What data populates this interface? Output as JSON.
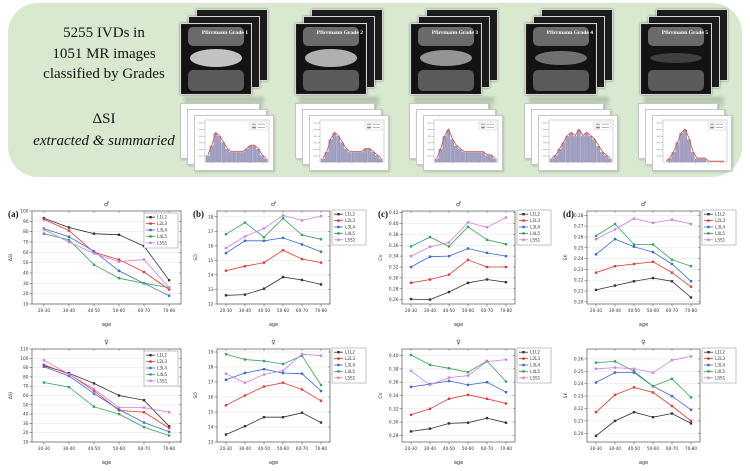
{
  "banner": {
    "count_line1": "5255 IVDs in",
    "count_line2": "1051 MR images",
    "count_line3": "classified by Grades",
    "delta_line1": "ΔSI",
    "delta_line2": "extracted & summaried",
    "bg_color": "#d8e9d0",
    "grades": [
      {
        "label": "Pfirrmann Grade 1",
        "histogram": [
          2,
          5,
          9,
          8,
          6,
          4,
          3,
          3,
          3,
          3,
          4,
          5,
          5,
          4,
          2,
          1
        ]
      },
      {
        "label": "Pfirrmann Grade 2",
        "histogram": [
          1,
          3,
          7,
          9,
          8,
          6,
          4,
          3,
          3,
          3,
          3,
          4,
          4,
          3,
          2,
          1
        ]
      },
      {
        "label": "Pfirrmann Grade 3",
        "histogram": [
          1,
          4,
          8,
          10,
          7,
          5,
          4,
          3,
          3,
          3,
          3,
          3,
          3,
          2,
          2,
          1
        ]
      },
      {
        "label": "Pfirrmann Grade 4",
        "histogram": [
          1,
          2,
          4,
          6,
          8,
          9,
          8,
          10,
          8,
          9,
          8,
          7,
          5,
          3,
          2,
          1
        ]
      },
      {
        "label": "Pfirrmann Grade 5",
        "histogram": [
          0,
          1,
          3,
          6,
          9,
          10,
          7,
          3,
          1,
          1,
          1,
          0,
          0,
          0,
          0,
          0
        ]
      }
    ]
  },
  "palette": {
    "L1L2": "#333333",
    "L2L3": "#e8392f",
    "L3L4": "#3a68d8",
    "L4L5": "#33a457",
    "L5S1": "#cf7fe8"
  },
  "chart_data": [
    {
      "type": "line",
      "panel": "(a)",
      "title": "♂",
      "xlabel": "age",
      "ylabel": "ΔSI",
      "categories": [
        "20-30",
        "30-40",
        "40-50",
        "50-60",
        "60-70",
        "70-80"
      ],
      "ylim": [
        10,
        100
      ],
      "yticks": [
        10,
        20,
        30,
        40,
        50,
        60,
        70,
        80,
        90,
        100
      ],
      "ydecimals": 0,
      "legend_outside": false,
      "series": [
        {
          "name": "L1L2",
          "values": [
            93,
            84,
            78,
            77,
            66,
            33
          ]
        },
        {
          "name": "L2L3",
          "values": [
            92,
            81,
            60,
            53,
            41,
            24
          ]
        },
        {
          "name": "L3L4",
          "values": [
            83,
            75,
            61,
            42,
            30,
            18
          ]
        },
        {
          "name": "L4L5",
          "values": [
            78,
            72,
            48,
            35,
            30,
            26
          ]
        },
        {
          "name": "L5S1",
          "values": [
            82,
            70,
            59,
            51,
            53,
            26
          ]
        }
      ]
    },
    {
      "type": "line",
      "panel": "(b)",
      "title": "♂",
      "xlabel": "age",
      "ylabel": "SD",
      "categories": [
        "20-30",
        "30-40",
        "40-50",
        "50-60",
        "60-70",
        "70-80"
      ],
      "ylim": [
        12,
        18.4
      ],
      "yticks": [
        12,
        13,
        14,
        15,
        16,
        17,
        18
      ],
      "ydecimals": 0,
      "legend_outside": true,
      "series": [
        {
          "name": "L1L2",
          "values": [
            12.6,
            12.65,
            13.05,
            13.85,
            13.65,
            13.35
          ]
        },
        {
          "name": "L2L3",
          "values": [
            14.3,
            14.6,
            14.85,
            15.7,
            15.1,
            14.85
          ]
        },
        {
          "name": "L3L4",
          "values": [
            15.5,
            16.35,
            16.35,
            16.55,
            16.1,
            15.6
          ]
        },
        {
          "name": "L4L5",
          "values": [
            16.8,
            17.6,
            16.6,
            17.9,
            16.75,
            16.45
          ]
        },
        {
          "name": "L5S1",
          "values": [
            15.85,
            16.65,
            17.2,
            18.1,
            17.75,
            18.05
          ]
        }
      ]
    },
    {
      "type": "line",
      "panel": "(c)",
      "title": "♂",
      "xlabel": "age",
      "ylabel": "CV",
      "categories": [
        "20-30",
        "30-40",
        "40-50",
        "50-60",
        "60-70",
        "70-80"
      ],
      "ylim": [
        0.252,
        0.423
      ],
      "yticks": [
        0.26,
        0.28,
        0.3,
        0.32,
        0.34,
        0.36,
        0.38,
        0.4,
        0.42
      ],
      "ydecimals": 2,
      "legend_outside": true,
      "series": [
        {
          "name": "L1L2",
          "values": [
            0.261,
            0.26,
            0.274,
            0.291,
            0.297,
            0.292
          ]
        },
        {
          "name": "L2L3",
          "values": [
            0.291,
            0.297,
            0.306,
            0.333,
            0.32,
            0.32
          ]
        },
        {
          "name": "L3L4",
          "values": [
            0.32,
            0.339,
            0.34,
            0.354,
            0.346,
            0.34
          ]
        },
        {
          "name": "L4L5",
          "values": [
            0.358,
            0.375,
            0.358,
            0.394,
            0.37,
            0.362
          ]
        },
        {
          "name": "L5S1",
          "values": [
            0.34,
            0.357,
            0.365,
            0.402,
            0.393,
            0.411
          ]
        }
      ]
    },
    {
      "type": "line",
      "panel": "(d)",
      "title": "♂",
      "xlabel": "age",
      "ylabel": "SK",
      "categories": [
        "20-30",
        "30-40",
        "40-50",
        "50-60",
        "60-70",
        "70-80"
      ],
      "ylim": [
        0.198,
        0.284
      ],
      "yticks": [
        0.2,
        0.21,
        0.22,
        0.23,
        0.24,
        0.25,
        0.26,
        0.27,
        0.28
      ],
      "ydecimals": 2,
      "legend_outside": true,
      "series": [
        {
          "name": "L1L2",
          "values": [
            0.211,
            0.215,
            0.219,
            0.222,
            0.219,
            0.204
          ]
        },
        {
          "name": "L2L3",
          "values": [
            0.227,
            0.233,
            0.235,
            0.237,
            0.227,
            0.214
          ]
        },
        {
          "name": "L3L4",
          "values": [
            0.244,
            0.258,
            0.251,
            0.246,
            0.235,
            0.219
          ]
        },
        {
          "name": "L4L5",
          "values": [
            0.261,
            0.272,
            0.253,
            0.253,
            0.239,
            0.233
          ]
        },
        {
          "name": "L5S1",
          "values": [
            0.258,
            0.267,
            0.277,
            0.273,
            0.276,
            0.272
          ]
        }
      ]
    },
    {
      "type": "line",
      "panel": "",
      "title": "♀",
      "xlabel": "age",
      "ylabel": "ΔSI",
      "categories": [
        "20-30",
        "30-40",
        "40-50",
        "50-60",
        "60-70",
        "70-80"
      ],
      "ylim": [
        10,
        110
      ],
      "yticks": [
        10,
        20,
        30,
        40,
        50,
        60,
        70,
        80,
        90,
        100,
        110
      ],
      "ydecimals": 0,
      "legend_outside": false,
      "series": [
        {
          "name": "L1L2",
          "values": [
            92,
            84,
            73,
            60,
            55,
            27
          ]
        },
        {
          "name": "L2L3",
          "values": [
            93,
            83,
            65,
            44,
            42,
            25
          ]
        },
        {
          "name": "L3L4",
          "values": [
            91,
            81,
            62,
            45,
            31,
            21
          ]
        },
        {
          "name": "L4L5",
          "values": [
            74,
            69,
            48,
            40,
            26,
            17
          ]
        },
        {
          "name": "L5S1",
          "values": [
            98,
            83,
            67,
            47,
            47,
            42
          ]
        }
      ]
    },
    {
      "type": "line",
      "panel": "",
      "title": "♀",
      "xlabel": "age",
      "ylabel": "SD",
      "categories": [
        "20-30",
        "30-40",
        "40-50",
        "50-60",
        "60-70",
        "70-80"
      ],
      "ylim": [
        13,
        19.2
      ],
      "yticks": [
        13,
        14,
        15,
        16,
        17,
        18,
        19
      ],
      "ydecimals": 0,
      "legend_outside": true,
      "series": [
        {
          "name": "L1L2",
          "values": [
            13.5,
            14.05,
            14.65,
            14.65,
            14.95,
            14.3
          ]
        },
        {
          "name": "L2L3",
          "values": [
            15.45,
            16.1,
            16.7,
            16.95,
            16.5,
            15.75
          ]
        },
        {
          "name": "L3L4",
          "values": [
            17.15,
            17.6,
            17.85,
            17.6,
            17.55,
            16.4
          ]
        },
        {
          "name": "L4L5",
          "values": [
            18.85,
            18.5,
            18.4,
            18.2,
            18.75,
            16.8
          ]
        },
        {
          "name": "L5S1",
          "values": [
            17.55,
            16.95,
            17.5,
            17.75,
            18.85,
            18.75
          ]
        }
      ]
    },
    {
      "type": "line",
      "panel": "",
      "title": "♀",
      "xlabel": "age",
      "ylabel": "CV",
      "categories": [
        "20-30",
        "30-40",
        "40-50",
        "50-60",
        "60-70",
        "70-80"
      ],
      "ylim": [
        0.27,
        0.41
      ],
      "yticks": [
        0.28,
        0.3,
        0.32,
        0.34,
        0.36,
        0.38,
        0.4
      ],
      "ydecimals": 2,
      "legend_outside": true,
      "series": [
        {
          "name": "L1L2",
          "values": [
            0.286,
            0.29,
            0.298,
            0.299,
            0.306,
            0.299
          ]
        },
        {
          "name": "L2L3",
          "values": [
            0.311,
            0.32,
            0.335,
            0.341,
            0.335,
            0.328
          ]
        },
        {
          "name": "L3L4",
          "values": [
            0.353,
            0.357,
            0.362,
            0.356,
            0.36,
            0.345
          ]
        },
        {
          "name": "L4L5",
          "values": [
            0.401,
            0.386,
            0.381,
            0.375,
            0.392,
            0.361
          ]
        },
        {
          "name": "L5S1",
          "values": [
            0.377,
            0.356,
            0.367,
            0.37,
            0.391,
            0.394
          ]
        }
      ]
    },
    {
      "type": "line",
      "panel": "",
      "title": "♀",
      "xlabel": "age",
      "ylabel": "SK",
      "categories": [
        "20-30",
        "30-40",
        "40-50",
        "50-60",
        "60-70",
        "70-80"
      ],
      "ylim": [
        0.193,
        0.268
      ],
      "yticks": [
        0.2,
        0.21,
        0.22,
        0.23,
        0.24,
        0.25,
        0.26
      ],
      "ydecimals": 2,
      "legend_outside": true,
      "series": [
        {
          "name": "L1L2",
          "values": [
            0.198,
            0.21,
            0.217,
            0.213,
            0.216,
            0.208
          ]
        },
        {
          "name": "L2L3",
          "values": [
            0.217,
            0.231,
            0.237,
            0.233,
            0.222,
            0.21
          ]
        },
        {
          "name": "L3L4",
          "values": [
            0.241,
            0.249,
            0.249,
            0.238,
            0.23,
            0.219
          ]
        },
        {
          "name": "L4L5",
          "values": [
            0.257,
            0.258,
            0.25,
            0.238,
            0.244,
            0.229
          ]
        },
        {
          "name": "L5S1",
          "values": [
            0.252,
            0.253,
            0.252,
            0.249,
            0.259,
            0.262
          ]
        }
      ]
    }
  ]
}
